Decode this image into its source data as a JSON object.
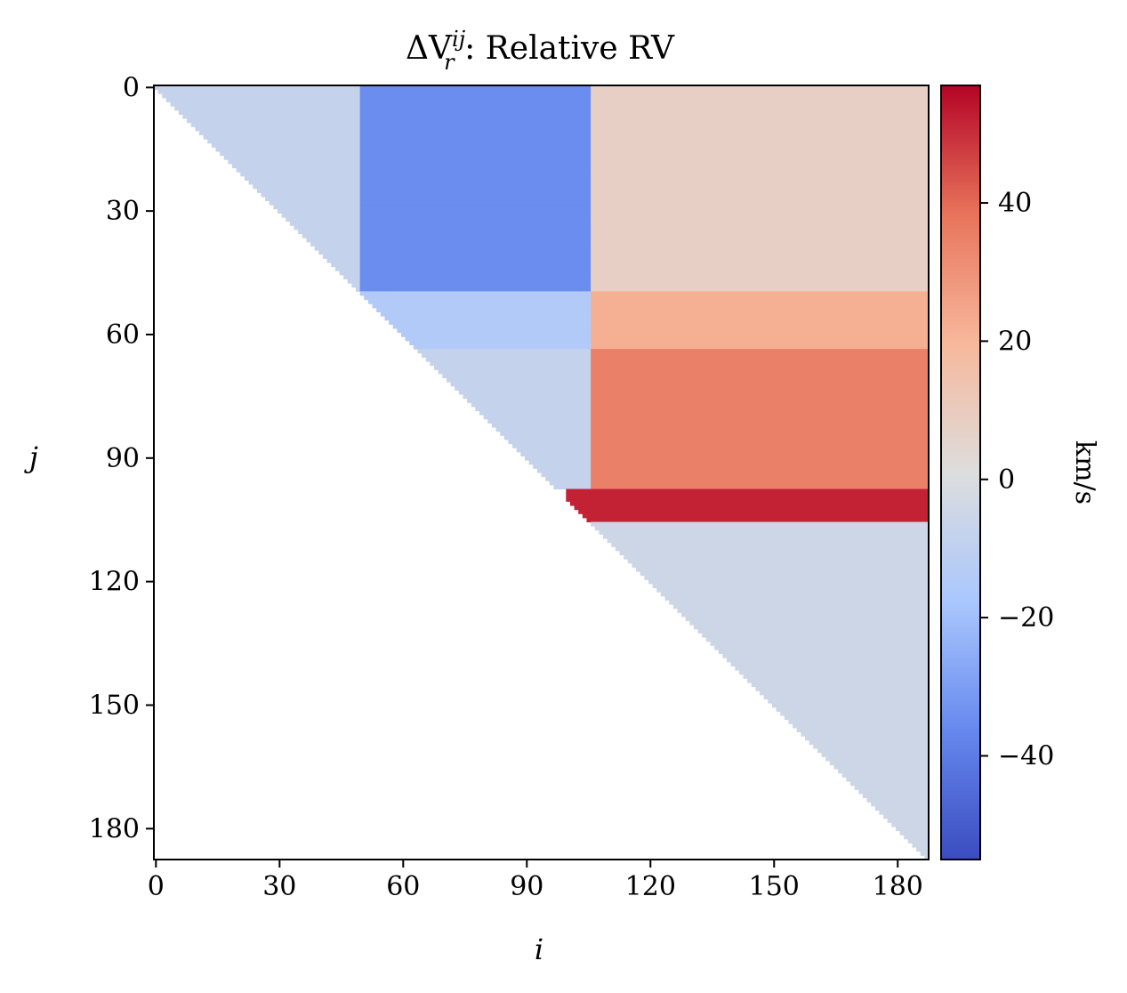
{
  "chart_data": {
    "type": "heatmap",
    "title_main": "ΔV",
    "title_sub": "r",
    "title_sup": "ij",
    "title_rest": " : Relative RV",
    "xlabel": "i",
    "ylabel": "j",
    "xlim": [
      0,
      188
    ],
    "ylim": [
      188,
      0
    ],
    "xticks": [
      "0",
      "30",
      "60",
      "90",
      "120",
      "150",
      "180"
    ],
    "yticks": [
      "0",
      "30",
      "60",
      "90",
      "120",
      "150",
      "180"
    ],
    "colorbar": {
      "label": "km/s",
      "vmin": -55,
      "vmax": 57,
      "ticks": [
        "40",
        "20",
        "0",
        "−20",
        "−40"
      ],
      "tick_values": [
        40,
        20,
        0,
        -20,
        -40
      ],
      "colormap": "coolwarm",
      "colors": [
        "#3b4cc0",
        "#6688ee",
        "#aac7fd",
        "#dddddd",
        "#f7b89c",
        "#e7745b",
        "#b40426"
      ]
    },
    "mask": "lower triangle (j > i) is empty/white",
    "blocks": [
      {
        "i_range": [
          0,
          50
        ],
        "j_range": [
          0,
          50
        ],
        "value": -8
      },
      {
        "i_range": [
          50,
          106
        ],
        "j_range": [
          0,
          50
        ],
        "value": -35
      },
      {
        "i_range": [
          106,
          188
        ],
        "j_range": [
          0,
          50
        ],
        "value": 8
      },
      {
        "i_range": [
          50,
          106
        ],
        "j_range": [
          50,
          64
        ],
        "value": -15
      },
      {
        "i_range": [
          106,
          188
        ],
        "j_range": [
          50,
          64
        ],
        "value": 22
      },
      {
        "i_range": [
          50,
          106
        ],
        "j_range": [
          64,
          98
        ],
        "value": -8
      },
      {
        "i_range": [
          106,
          188
        ],
        "j_range": [
          64,
          98
        ],
        "value": 35
      },
      {
        "i_range": [
          100,
          188
        ],
        "j_range": [
          98,
          106
        ],
        "value": 52
      },
      {
        "i_range": [
          106,
          188
        ],
        "j_range": [
          106,
          188
        ],
        "value": -5
      }
    ]
  }
}
